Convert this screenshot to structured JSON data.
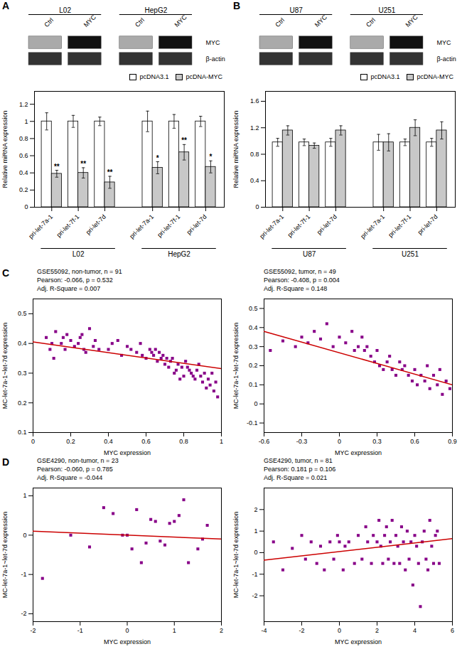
{
  "chart_data": [
    {
      "type": "blot",
      "title": "A",
      "categories": [
        "Ctrl",
        "MYC",
        "Ctrl",
        "MYC"
      ],
      "groups": [
        "L02",
        "L02",
        "HepG2",
        "HepG2"
      ],
      "bands": [
        "MYC",
        "β-actin"
      ]
    },
    {
      "type": "blot",
      "title": "B",
      "categories": [
        "Ctrl",
        "MYC",
        "Ctrl",
        "MYC"
      ],
      "groups": [
        "U87",
        "U87",
        "U251",
        "U251"
      ],
      "bands": [
        "MYC",
        "β-actin"
      ]
    },
    {
      "type": "bar",
      "ylabel": "Relative miRNA expression",
      "ylim": [
        0,
        1.35
      ],
      "yticks": [
        0,
        0.2,
        0.4,
        0.6,
        0.8,
        1,
        1.2
      ],
      "legend": "upper right",
      "categories": [
        "pri-let-7a-1",
        "pri-let-7f-1",
        "pri-let-7d",
        "pri-let-7a-1",
        "pri-let-7f-1",
        "pri-let-7d"
      ],
      "groups": [
        "L02",
        "L02",
        "L02",
        "HepG2",
        "HepG2",
        "HepG2"
      ],
      "series": [
        {
          "name": "pcDNA3.1",
          "color": "#ffffff",
          "values": [
            1.0,
            1.0,
            1.0,
            1.0,
            1.0,
            1.0
          ],
          "errors": [
            0.1,
            0.07,
            0.05,
            0.12,
            0.08,
            0.06
          ]
        },
        {
          "name": "pcDNA-MYC",
          "color": "#c8c8c8",
          "values": [
            0.39,
            0.4,
            0.29,
            0.46,
            0.64,
            0.47
          ],
          "errors": [
            0.04,
            0.06,
            0.07,
            0.07,
            0.09,
            0.07
          ],
          "labels": [
            "**",
            "**",
            "**",
            "*",
            "**",
            "*"
          ]
        }
      ]
    },
    {
      "type": "bar",
      "ylabel": "Relative miRNA expression",
      "ylim": [
        0,
        1.75
      ],
      "yticks": [
        0,
        0.4,
        0.8,
        1.2,
        1.6
      ],
      "legend": "upper right",
      "categories": [
        "pri-let-7a-1",
        "pri-let-7f-1",
        "pri-let-7d",
        "pri-let-7a-1",
        "pri-let-7f-1",
        "pri-let-7d"
      ],
      "groups": [
        "U87",
        "U87",
        "U87",
        "U251",
        "U251",
        "U251"
      ],
      "series": [
        {
          "name": "pcDNA3.1",
          "color": "#ffffff",
          "values": [
            0.98,
            0.98,
            0.98,
            0.98,
            0.98,
            0.98
          ],
          "errors": [
            0.06,
            0.05,
            0.06,
            0.12,
            0.05,
            0.06
          ]
        },
        {
          "name": "pcDNA-MYC",
          "color": "#c8c8c8",
          "values": [
            1.16,
            0.93,
            1.16,
            0.98,
            1.2,
            1.16
          ],
          "errors": [
            0.07,
            0.04,
            0.07,
            0.13,
            0.12,
            0.13
          ]
        }
      ]
    },
    {
      "type": "scatter",
      "title": "C",
      "subtitle": "GSE55092, non-tumor, n = 91\nPearson: -0.066, p = 0.532\nAdj. R-Square = 0.007",
      "xlabel": "MYC expression",
      "ylabel": "MC-let-7a-1~let-7d expression",
      "xlim": [
        0.0,
        1.0
      ],
      "ylim": [
        0.1,
        0.55
      ],
      "xticks": [
        0,
        0.2,
        0.4,
        0.6,
        0.8,
        1
      ],
      "yticks": [
        0.1,
        0.2,
        0.3,
        0.4,
        0.5
      ],
      "series": [
        {
          "type": "scatter",
          "color": "#880088",
          "marker": "square",
          "x": [
            0.07,
            0.09,
            0.1,
            0.11,
            0.12,
            0.15,
            0.16,
            0.17,
            0.18,
            0.2,
            0.22,
            0.24,
            0.25,
            0.26,
            0.27,
            0.28,
            0.3,
            0.32,
            0.33,
            0.35,
            0.4,
            0.42,
            0.45,
            0.47,
            0.5,
            0.52,
            0.55,
            0.57,
            0.58,
            0.6,
            0.62,
            0.63,
            0.64,
            0.65,
            0.66,
            0.67,
            0.68,
            0.69,
            0.7,
            0.71,
            0.72,
            0.73,
            0.74,
            0.75,
            0.76,
            0.77,
            0.78,
            0.79,
            0.8,
            0.81,
            0.82,
            0.83,
            0.84,
            0.85,
            0.86,
            0.87,
            0.88,
            0.89,
            0.9,
            0.91,
            0.92,
            0.93,
            0.94,
            0.95,
            0.96,
            0.97,
            0.98
          ],
          "values": [
            0.42,
            0.38,
            0.4,
            0.35,
            0.44,
            0.4,
            0.42,
            0.38,
            0.43,
            0.41,
            0.39,
            0.4,
            0.42,
            0.43,
            0.38,
            0.37,
            0.45,
            0.39,
            0.41,
            0.38,
            0.38,
            0.4,
            0.41,
            0.36,
            0.39,
            0.38,
            0.37,
            0.4,
            0.36,
            0.35,
            0.38,
            0.37,
            0.36,
            0.38,
            0.34,
            0.37,
            0.35,
            0.36,
            0.33,
            0.35,
            0.32,
            0.34,
            0.35,
            0.3,
            0.31,
            0.33,
            0.28,
            0.32,
            0.29,
            0.34,
            0.32,
            0.31,
            0.3,
            0.29,
            0.28,
            0.31,
            0.33,
            0.29,
            0.27,
            0.3,
            0.25,
            0.28,
            0.26,
            0.3,
            0.24,
            0.27,
            0.22
          ]
        },
        {
          "type": "line",
          "color": "#cc0000",
          "x": [
            0.0,
            1.0
          ],
          "values": [
            0.405,
            0.315
          ]
        }
      ]
    },
    {
      "type": "scatter",
      "subtitle": "GSE55092, tumor, n = 49\nPearson: -0.408, p = 0.004\nAdj. R-Square = 0.148",
      "xlabel": "MYC expression",
      "ylabel": "MC-let-7a-1~let-7d expression",
      "xlim": [
        -0.6,
        0.9
      ],
      "ylim": [
        -0.15,
        0.55
      ],
      "xticks": [
        -0.6,
        -0.3,
        0,
        0.3,
        0.6,
        0.9
      ],
      "yticks": [
        -0.1,
        0,
        0.1,
        0.2,
        0.3,
        0.4,
        0.5
      ],
      "series": [
        {
          "type": "scatter",
          "color": "#880088",
          "marker": "square",
          "x": [
            -0.55,
            -0.45,
            -0.35,
            -0.3,
            -0.25,
            -0.2,
            -0.15,
            -0.1,
            -0.05,
            0.0,
            0.05,
            0.1,
            0.12,
            0.15,
            0.18,
            0.2,
            0.22,
            0.25,
            0.28,
            0.3,
            0.32,
            0.35,
            0.38,
            0.4,
            0.42,
            0.45,
            0.48,
            0.5,
            0.52,
            0.55,
            0.58,
            0.6,
            0.62,
            0.65,
            0.68,
            0.7,
            0.72,
            0.75,
            0.78,
            0.8,
            0.82,
            0.85,
            0.88
          ],
          "values": [
            0.28,
            0.33,
            0.3,
            0.35,
            0.32,
            0.38,
            0.34,
            0.42,
            0.3,
            0.35,
            0.32,
            0.38,
            0.28,
            0.3,
            0.35,
            0.28,
            0.3,
            0.25,
            0.22,
            0.28,
            0.2,
            0.18,
            0.22,
            0.25,
            0.18,
            0.15,
            0.22,
            0.18,
            0.2,
            0.15,
            0.12,
            0.18,
            0.1,
            0.15,
            0.12,
            0.2,
            0.08,
            0.15,
            0.1,
            0.18,
            0.05,
            0.12,
            0.08
          ]
        },
        {
          "type": "line",
          "color": "#cc0000",
          "x": [
            -0.6,
            0.9
          ],
          "values": [
            0.38,
            0.1
          ]
        }
      ]
    },
    {
      "type": "scatter",
      "title": "D",
      "subtitle": "GSE4290, non-tumor, n = 23\nPearson: -0.060, p = 0.785\nAdj. R-Square = -0.044",
      "xlabel": "MYC expression",
      "ylabel": "MC-let-7a-1~let-7d expression",
      "xlim": [
        -2.0,
        2.0
      ],
      "ylim": [
        -2.2,
        1.2
      ],
      "xticks": [
        -2,
        -1,
        0,
        1,
        2
      ],
      "yticks": [
        -2,
        -1,
        0,
        1
      ],
      "series": [
        {
          "type": "scatter",
          "color": "#880088",
          "marker": "square",
          "x": [
            -1.8,
            -1.2,
            -0.8,
            -0.5,
            -0.3,
            -0.1,
            0.0,
            0.1,
            0.2,
            0.3,
            0.4,
            0.5,
            0.6,
            0.7,
            0.8,
            0.9,
            1.0,
            1.1,
            1.2,
            1.3,
            1.5,
            1.6,
            1.7
          ],
          "values": [
            -1.1,
            0.0,
            -0.3,
            0.7,
            0.55,
            0.0,
            0.0,
            -0.35,
            0.65,
            -0.7,
            -0.2,
            0.4,
            0.35,
            -0.15,
            -0.25,
            0.3,
            0.35,
            0.5,
            0.9,
            -0.7,
            -0.35,
            -0.1,
            0.25
          ]
        },
        {
          "type": "line",
          "color": "#cc0000",
          "x": [
            -2.0,
            2.0
          ],
          "values": [
            0.1,
            -0.1
          ]
        }
      ]
    },
    {
      "type": "scatter",
      "subtitle": "GSE4290, tumor, n = 81\nPearson: 0.181 p = 0.106\nAdj. R-Square = 0.021",
      "xlabel": "MYC expression",
      "ylabel": "MC-let-7a-1~let-7d expression",
      "xlim": [
        -4.0,
        6.0
      ],
      "ylim": [
        -3.2,
        3.0
      ],
      "xticks": [
        -4,
        -2,
        0,
        2,
        4,
        6
      ],
      "yticks": [
        -2,
        -1,
        0,
        1,
        2
      ],
      "series": [
        {
          "type": "scatter",
          "color": "#880088",
          "marker": "square",
          "x": [
            -3.5,
            -3.0,
            -2.5,
            -2.0,
            -1.8,
            -1.5,
            -1.2,
            -1.0,
            -0.8,
            -0.5,
            -0.3,
            -0.1,
            0.0,
            0.2,
            0.3,
            0.5,
            0.8,
            1.0,
            1.2,
            1.4,
            1.5,
            1.7,
            1.8,
            2.0,
            2.1,
            2.2,
            2.3,
            2.4,
            2.5,
            2.6,
            2.7,
            2.8,
            2.9,
            3.0,
            3.1,
            3.2,
            3.3,
            3.4,
            3.5,
            3.6,
            3.7,
            3.8,
            3.9,
            4.0,
            4.1,
            4.2,
            4.3,
            4.4,
            4.5,
            4.6,
            4.7,
            4.8,
            4.9,
            5.0,
            5.1,
            5.2,
            5.3
          ],
          "values": [
            0.5,
            -0.8,
            0.2,
            0.8,
            -0.3,
            0.5,
            -0.5,
            0.3,
            -0.8,
            0.5,
            -0.3,
            0.8,
            0.5,
            -0.8,
            0.3,
            0.5,
            -0.5,
            0.8,
            -0.3,
            1.2,
            0.5,
            -0.5,
            0.8,
            0.5,
            1.5,
            0.3,
            -0.5,
            0.8,
            1.2,
            -0.3,
            0.5,
            1.5,
            -0.5,
            0.8,
            0.3,
            -0.5,
            1.2,
            0.5,
            -0.8,
            1.0,
            -0.3,
            0.5,
            -1.5,
            0.8,
            0.3,
            -0.5,
            -2.5,
            0.5,
            1.0,
            -0.3,
            -0.8,
            1.5,
            0.3,
            -0.5,
            0.8,
            1.0,
            -0.5
          ]
        },
        {
          "type": "line",
          "color": "#cc0000",
          "x": [
            -4.0,
            6.0
          ],
          "values": [
            -0.35,
            0.65
          ]
        }
      ]
    }
  ]
}
